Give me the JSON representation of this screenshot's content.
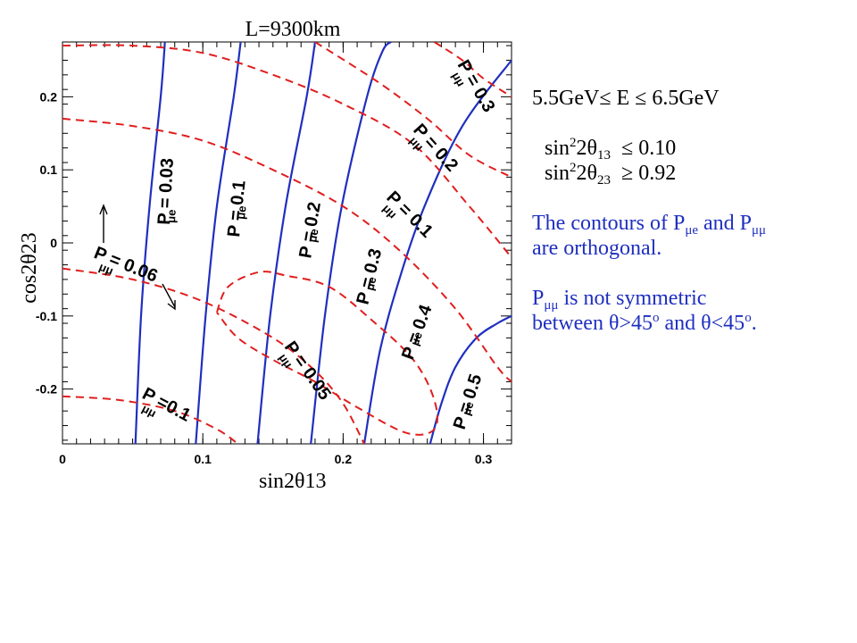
{
  "chart_data": {
    "type": "line",
    "title": "L=9300km",
    "xlabel": "sin2θ13",
    "ylabel": "cos2θ23",
    "xlim": [
      0,
      0.32
    ],
    "ylim": [
      -0.275,
      0.275
    ],
    "xticks": [
      "0",
      "0.1",
      "0.2",
      "0.3"
    ],
    "yticks": [
      "0.2",
      "0.1",
      "0",
      "-0.1",
      "-0.2"
    ],
    "grid": false,
    "colors": {
      "p_mue": "#1f2fbf",
      "p_mumu": "#e01e1e"
    },
    "series": [
      {
        "kind": "p_mue",
        "label": "P = 0.03",
        "sub": "μe",
        "style": "solid",
        "points": [
          [
            0.052,
            -0.275
          ],
          [
            0.056,
            -0.1
          ],
          [
            0.062,
            0.05
          ],
          [
            0.07,
            0.2
          ],
          [
            0.073,
            0.275
          ]
        ]
      },
      {
        "kind": "p_mue",
        "label": "P = 0.1",
        "sub": "μe",
        "style": "solid",
        "points": [
          [
            0.095,
            -0.275
          ],
          [
            0.102,
            -0.1
          ],
          [
            0.11,
            0.05
          ],
          [
            0.122,
            0.2
          ],
          [
            0.127,
            0.275
          ]
        ]
      },
      {
        "kind": "p_mue",
        "label": "P = 0.2",
        "sub": "μe",
        "style": "solid",
        "points": [
          [
            0.139,
            -0.275
          ],
          [
            0.148,
            -0.1
          ],
          [
            0.159,
            0.05
          ],
          [
            0.174,
            0.2
          ],
          [
            0.18,
            0.275
          ]
        ]
      },
      {
        "kind": "p_mue",
        "label": "P = 0.3",
        "sub": "μe",
        "style": "solid",
        "points": [
          [
            0.177,
            -0.275
          ],
          [
            0.187,
            -0.1
          ],
          [
            0.199,
            0.05
          ],
          [
            0.217,
            0.2
          ],
          [
            0.228,
            0.262
          ],
          [
            0.234,
            0.275
          ]
        ]
      },
      {
        "kind": "p_mue",
        "label": "P = 0.4",
        "sub": "μe",
        "style": "solid",
        "points": [
          [
            0.215,
            -0.275
          ],
          [
            0.226,
            -0.15
          ],
          [
            0.24,
            -0.05
          ],
          [
            0.258,
            0.05
          ],
          [
            0.285,
            0.16
          ],
          [
            0.32,
            0.25
          ]
        ]
      },
      {
        "kind": "p_mue",
        "label": "P = 0.5",
        "sub": "μe",
        "style": "solid",
        "points": [
          [
            0.262,
            -0.275
          ],
          [
            0.27,
            -0.22
          ],
          [
            0.28,
            -0.17
          ],
          [
            0.295,
            -0.13
          ],
          [
            0.31,
            -0.11
          ],
          [
            0.32,
            -0.1
          ]
        ]
      },
      {
        "kind": "p_mumu",
        "label": "P = 0.3",
        "sub": "μμ",
        "style": "dashed",
        "points": [
          [
            0.265,
            0.275
          ],
          [
            0.285,
            0.25
          ],
          [
            0.3,
            0.225
          ],
          [
            0.32,
            0.2
          ]
        ]
      },
      {
        "kind": "p_mumu",
        "label": "P = 0.2",
        "sub": "μμ",
        "style": "dashed",
        "points": [
          [
            0.18,
            0.275
          ],
          [
            0.225,
            0.22
          ],
          [
            0.26,
            0.17
          ],
          [
            0.29,
            0.12
          ],
          [
            0.32,
            0.09
          ]
        ]
      },
      {
        "kind": "p_mumu",
        "label": "P = 0.1",
        "sub": "μμ",
        "style": "dashed",
        "points": [
          [
            0.0,
            0.27
          ],
          [
            0.05,
            0.27
          ],
          [
            0.1,
            0.26
          ],
          [
            0.15,
            0.23
          ],
          [
            0.2,
            0.19
          ],
          [
            0.25,
            0.135
          ],
          [
            0.29,
            0.05
          ],
          [
            0.32,
            -0.02
          ]
        ]
      },
      {
        "kind": "p_mumu",
        "label": "P = 0.06",
        "sub": "μμ",
        "style": "dashed",
        "points": [
          [
            0.0,
            0.17
          ],
          [
            0.05,
            0.16
          ],
          [
            0.1,
            0.14
          ],
          [
            0.15,
            0.1
          ],
          [
            0.2,
            0.05
          ],
          [
            0.24,
            -0.01
          ],
          [
            0.28,
            -0.09
          ],
          [
            0.31,
            -0.17
          ],
          [
            0.32,
            -0.19
          ]
        ]
      },
      {
        "kind": "p_mumu",
        "label": "P = 0.05",
        "sub": "μμ",
        "style": "dashed",
        "points": [
          [
            0.11,
            -0.095
          ],
          [
            0.118,
            -0.06
          ],
          [
            0.14,
            -0.04
          ],
          [
            0.16,
            -0.045
          ],
          [
            0.19,
            -0.06
          ],
          [
            0.22,
            -0.105
          ],
          [
            0.25,
            -0.16
          ],
          [
            0.265,
            -0.215
          ],
          [
            0.265,
            -0.255
          ],
          [
            0.245,
            -0.26
          ],
          [
            0.21,
            -0.225
          ],
          [
            0.18,
            -0.19
          ],
          [
            0.15,
            -0.16
          ],
          [
            0.125,
            -0.13
          ],
          [
            0.11,
            -0.095
          ]
        ]
      },
      {
        "kind": "p_mumu",
        "label": "",
        "sub": "",
        "style": "dashed",
        "points": [
          [
            0.0,
            -0.035
          ],
          [
            0.05,
            -0.05
          ],
          [
            0.1,
            -0.08
          ],
          [
            0.15,
            -0.13
          ],
          [
            0.18,
            -0.175
          ],
          [
            0.2,
            -0.22
          ],
          [
            0.215,
            -0.275
          ]
        ]
      },
      {
        "kind": "p_mumu",
        "label": "P =0.1",
        "sub": "μμ",
        "style": "dashed",
        "points": [
          [
            0.0,
            -0.21
          ],
          [
            0.04,
            -0.215
          ],
          [
            0.08,
            -0.23
          ],
          [
            0.11,
            -0.255
          ],
          [
            0.125,
            -0.275
          ]
        ]
      }
    ],
    "annotations": [
      {
        "label": "P = 0.06",
        "sub": "μμ",
        "arrow": true
      }
    ]
  },
  "notes": {
    "energy": "5.5GeV≤ E ≤ 6.5GeV",
    "th13_prefix": "sin",
    "th13_sup": "2",
    "th13_mid": "2θ",
    "th13_sub": "13",
    "th13_cond": "≤ 0.10",
    "th23_prefix": "sin",
    "th23_sup": "2",
    "th23_mid": "2θ",
    "th23_sub": "23",
    "th23_cond": "≥ 0.92",
    "contour_a": "The contours of P",
    "contour_sub1": "μe",
    "contour_b": " and P",
    "contour_sub2": "μμ",
    "contour_c": "are orthogonal.",
    "sym_a": "P",
    "sym_sub": "μμ",
    "sym_b": " is not symmetric",
    "sym_c": "between θ>45",
    "sym_sup1": "o",
    "sym_d": " and θ<45",
    "sym_sup2": "o",
    "sym_e": "."
  }
}
